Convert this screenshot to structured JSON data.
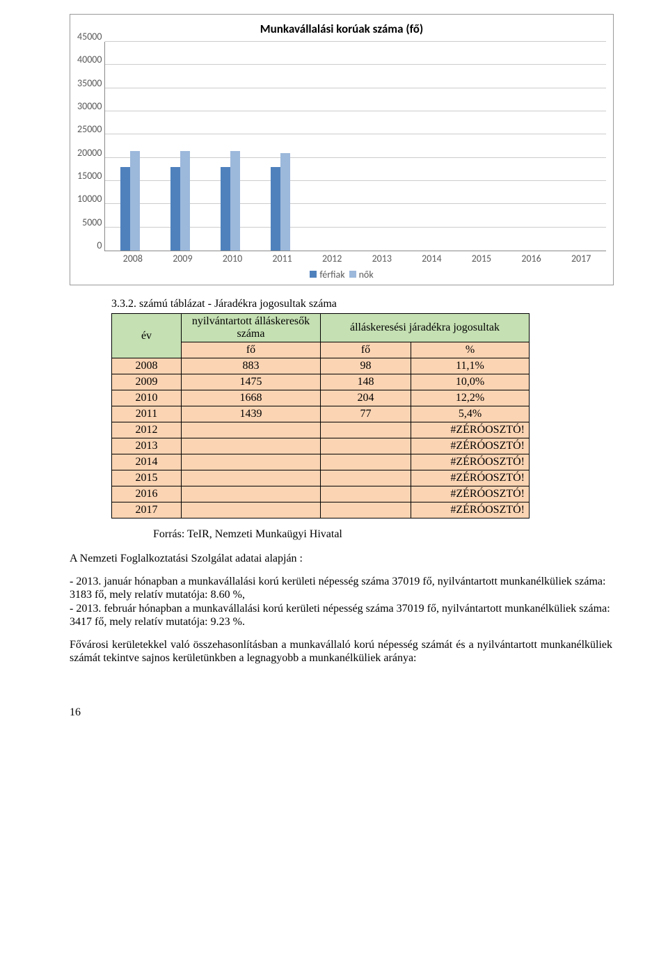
{
  "chart": {
    "title": "Munkavállalási korúak száma (fő)",
    "ymax": 45000,
    "yticks": [
      45000,
      40000,
      35000,
      30000,
      25000,
      20000,
      15000,
      10000,
      5000,
      0
    ],
    "categories": [
      "2008",
      "2009",
      "2010",
      "2011",
      "2012",
      "2013",
      "2014",
      "2015",
      "2016",
      "2017"
    ],
    "series": [
      {
        "name": "férfiak",
        "color": "#4f81bd",
        "values": [
          18000,
          18000,
          18000,
          18000,
          0,
          0,
          0,
          0,
          0,
          0
        ]
      },
      {
        "name": "nők",
        "color": "#9cb8db",
        "values": [
          21500,
          21500,
          21500,
          21000,
          0,
          0,
          0,
          0,
          0,
          0
        ]
      }
    ],
    "grid_color": "#cccccc",
    "axis_font_size": 14,
    "title_font_size": 17,
    "legend_text_color": "#5a5a5a"
  },
  "table": {
    "caption": "3.3.2. számú táblázat - Járadékra jogosultak száma",
    "headers": {
      "year": "év",
      "col1": "nyilvántartott álláskeresők száma",
      "col2": "álláskeresési járadékra jogosultak",
      "sub1": "fő",
      "sub2": "fő",
      "sub3": "%"
    },
    "header_bg_green": "#c5e0b3",
    "header_bg_pink": "#fbd4b3",
    "row_bg_orange": "#fbd4b3",
    "rows": [
      {
        "year": "2008",
        "a": "883",
        "b": "98",
        "c": "11,1%"
      },
      {
        "year": "2009",
        "a": "1475",
        "b": "148",
        "c": "10,0%"
      },
      {
        "year": "2010",
        "a": "1668",
        "b": "204",
        "c": "12,2%"
      },
      {
        "year": "2011",
        "a": "1439",
        "b": "77",
        "c": "5,4%"
      },
      {
        "year": "2012",
        "a": "",
        "b": "",
        "c": "#ZÉRÓOSZTÓ!"
      },
      {
        "year": "2013",
        "a": "",
        "b": "",
        "c": "#ZÉRÓOSZTÓ!"
      },
      {
        "year": "2014",
        "a": "",
        "b": "",
        "c": "#ZÉRÓOSZTÓ!"
      },
      {
        "year": "2015",
        "a": "",
        "b": "",
        "c": "#ZÉRÓOSZTÓ!"
      },
      {
        "year": "2016",
        "a": "",
        "b": "",
        "c": "#ZÉRÓOSZTÓ!"
      },
      {
        "year": "2017",
        "a": "",
        "b": "",
        "c": "#ZÉRÓOSZTÓ!"
      }
    ],
    "source": "Forrás: TeIR, Nemzeti Munkaügyi Hivatal"
  },
  "body": {
    "p1": "A Nemzeti Foglalkoztatási Szolgálat adatai alapján :",
    "p2": "- 2013. január hónapban a munkavállalási korú kerületi népesség száma 37019 fő, nyilvántartott munkanélküliek száma: 3183 fő, mely relatív mutatója: 8.60 %,",
    "p3": " - 2013. február hónapban a munkavállalási korú kerületi népesség száma 37019 fő, nyilvántartott munkanélküliek száma: 3417 fő, mely relatív mutatója: 9.23 %.",
    "p4": "Fővárosi kerületekkel való összehasonlításban a munkavállaló korú népesség számát és a nyilvántartott munkanélküliek számát tekintve sajnos kerületünkben a legnagyobb a munkanélküliek aránya:"
  },
  "page_number": "16"
}
